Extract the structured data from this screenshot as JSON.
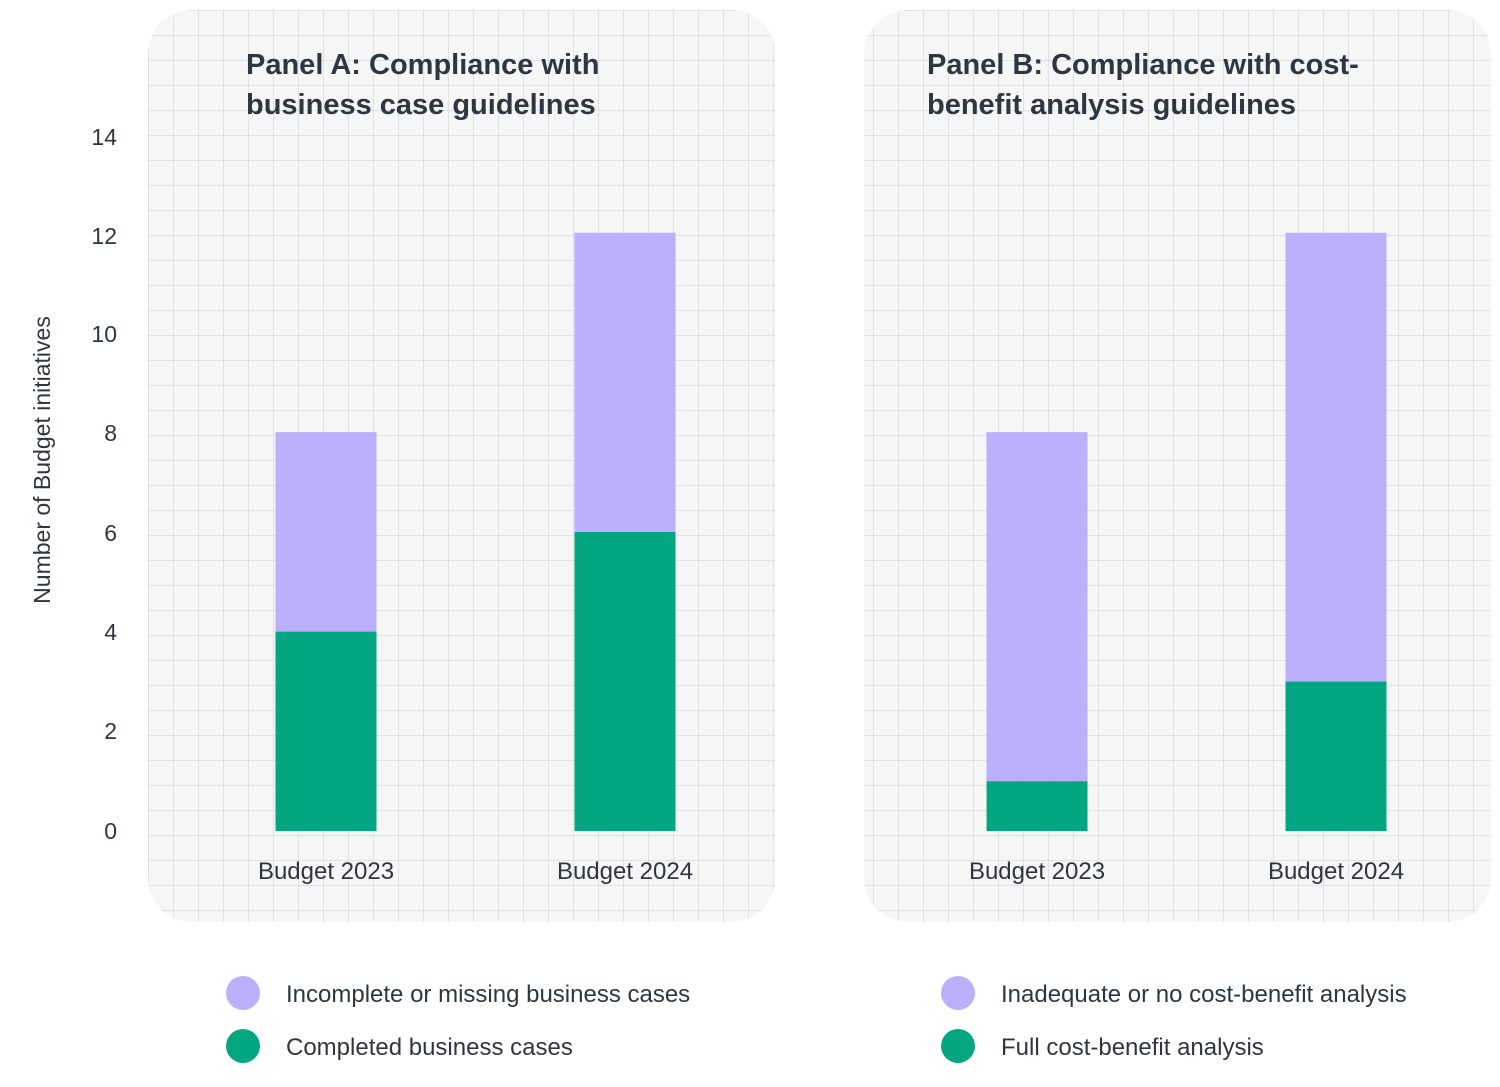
{
  "colors": {
    "incomplete": "#bcaffb",
    "complete": "#04a681",
    "panel_bg": "#f6f6f6",
    "grid": "#c9c9c9",
    "text": "#2f3640"
  },
  "chart_data": [
    {
      "type": "bar",
      "stacked": true,
      "title_lines": [
        "Panel A: Compliance with",
        "business case guidelines"
      ],
      "ylabel": "Number of Budget initiatives",
      "ylim": [
        0,
        14
      ],
      "yticks": [
        "0",
        "2",
        "4",
        "6",
        "8",
        "10",
        "12",
        "14"
      ],
      "categories": [
        "Budget 2023",
        "Budget 2024"
      ],
      "series": [
        {
          "name": "Completed business cases",
          "color_key": "complete",
          "values": [
            4,
            6
          ]
        },
        {
          "name": "Incomplete or missing business cases",
          "color_key": "incomplete",
          "values": [
            4,
            6
          ]
        }
      ],
      "legend": [
        "Incomplete or missing business cases",
        "Completed business cases"
      ]
    },
    {
      "type": "bar",
      "stacked": true,
      "title_lines": [
        "Panel B: Compliance with cost-",
        "benefit analysis guidelines"
      ],
      "ylim": [
        0,
        14
      ],
      "categories": [
        "Budget 2023",
        "Budget 2024"
      ],
      "series": [
        {
          "name": "Full cost-benefit analysis",
          "color_key": "complete",
          "values": [
            1,
            3
          ]
        },
        {
          "name": "Inadequate or no cost-benefit analysis",
          "color_key": "incomplete",
          "values": [
            7,
            9
          ]
        }
      ],
      "legend": [
        "Inadequate or no cost-benefit analysis",
        "Full cost-benefit analysis"
      ]
    }
  ]
}
